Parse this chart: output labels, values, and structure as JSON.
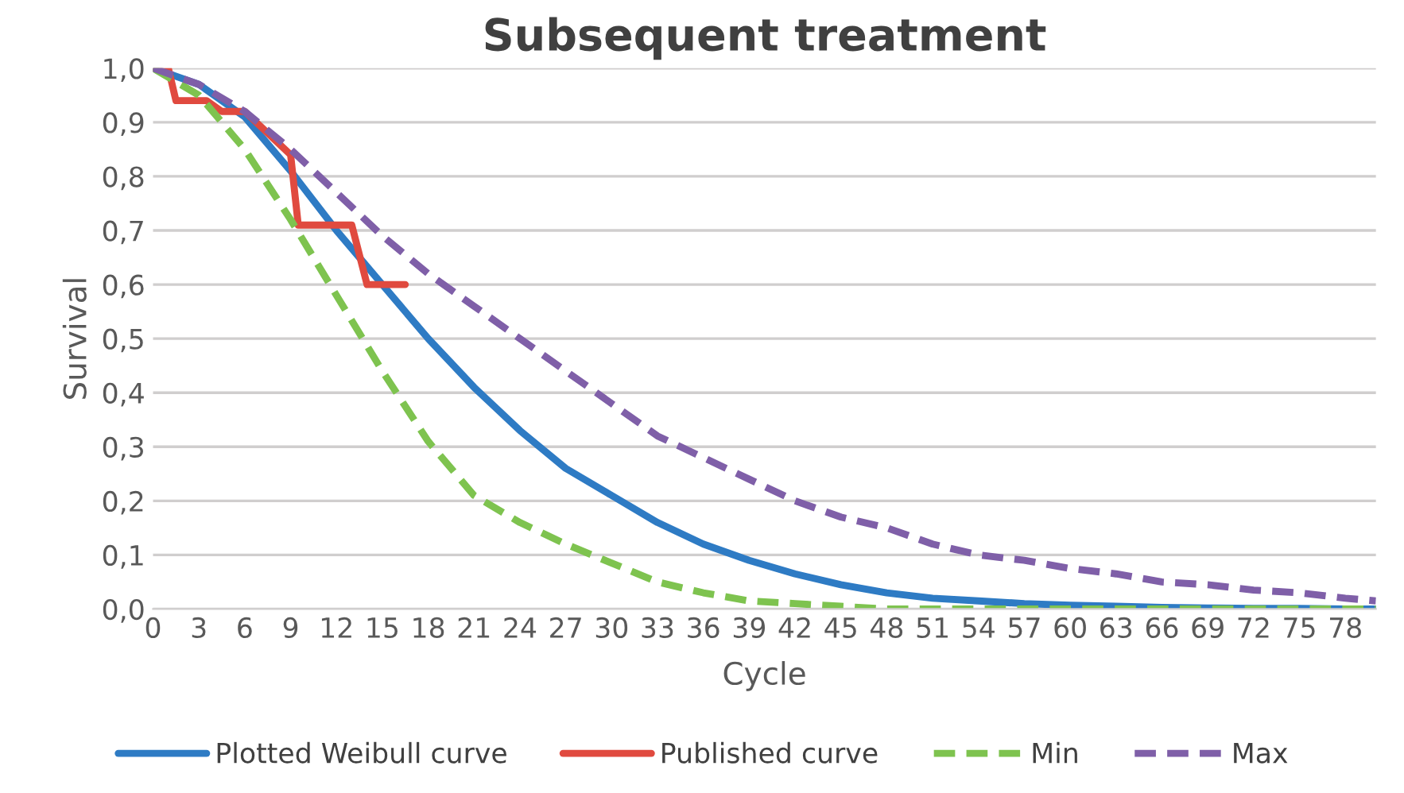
{
  "chart_data": {
    "type": "line",
    "title": "Subsequent treatment",
    "xlabel": "Cycle",
    "ylabel": "Survival",
    "xlim": [
      0,
      80
    ],
    "xticks": [
      0,
      3,
      6,
      9,
      12,
      15,
      18,
      21,
      24,
      27,
      30,
      33,
      36,
      39,
      42,
      45,
      48,
      51,
      54,
      57,
      60,
      63,
      66,
      69,
      72,
      75,
      78
    ],
    "ylim": [
      0,
      1
    ],
    "yticks": [
      {
        "value": 0,
        "label": "0,0"
      },
      {
        "value": 0.1,
        "label": "0,1"
      },
      {
        "value": 0.2,
        "label": "0,2"
      },
      {
        "value": 0.3,
        "label": "0,3"
      },
      {
        "value": 0.4,
        "label": "0,4"
      },
      {
        "value": 0.5,
        "label": "0,5"
      },
      {
        "value": 0.6,
        "label": "0,6"
      },
      {
        "value": 0.7,
        "label": "0,7"
      },
      {
        "value": 0.8,
        "label": "0,8"
      },
      {
        "value": 0.9,
        "label": "0,9"
      },
      {
        "value": 1,
        "label": "1,0"
      }
    ],
    "grid": "y",
    "legend": "bottom",
    "marker": "none",
    "series": [
      {
        "name": "Plotted Weibull curve",
        "color": "#2e7bc4",
        "line_style": "solid",
        "x": [
          0,
          3,
          6,
          9,
          12,
          15,
          18,
          21,
          24,
          27,
          30,
          33,
          36,
          39,
          42,
          45,
          48,
          51,
          54,
          57,
          60,
          63,
          66,
          69,
          72,
          75,
          78,
          80
        ],
        "values": [
          1.0,
          0.97,
          0.91,
          0.81,
          0.7,
          0.6,
          0.5,
          0.41,
          0.33,
          0.26,
          0.21,
          0.16,
          0.12,
          0.09,
          0.065,
          0.045,
          0.03,
          0.02,
          0.015,
          0.01,
          0.007,
          0.005,
          0.003,
          0.002,
          0.001,
          0.001,
          0.0,
          0.0
        ]
      },
      {
        "name": "Published curve",
        "color": "#e04a3f",
        "line_style": "solid",
        "x": [
          0,
          1,
          1.5,
          3.5,
          4.5,
          6,
          9,
          9.5,
          13,
          14,
          16.5
        ],
        "values": [
          1.0,
          1.0,
          0.94,
          0.94,
          0.92,
          0.92,
          0.84,
          0.71,
          0.71,
          0.6,
          0.6
        ]
      },
      {
        "name": "Min",
        "color": "#7ec34f",
        "line_style": "dashed",
        "x": [
          0,
          3,
          6,
          9,
          12,
          15,
          18,
          21,
          24,
          27,
          30,
          33,
          36,
          39,
          42,
          45,
          48,
          51,
          54,
          57,
          60,
          63,
          66,
          69,
          72,
          75,
          78,
          80
        ],
        "values": [
          1.0,
          0.95,
          0.85,
          0.72,
          0.58,
          0.44,
          0.31,
          0.21,
          0.16,
          0.12,
          0.085,
          0.05,
          0.03,
          0.015,
          0.01,
          0.005,
          0.0,
          0.0,
          0.0,
          0.0,
          0.0,
          0.0,
          0.0,
          0.0,
          0.0,
          0.0,
          0.0,
          0.0
        ]
      },
      {
        "name": "Max",
        "color": "#7f5fa8",
        "line_style": "dashed",
        "x": [
          0,
          3,
          6,
          9,
          12,
          15,
          18,
          21,
          24,
          27,
          30,
          33,
          36,
          39,
          42,
          45,
          48,
          51,
          54,
          57,
          60,
          63,
          66,
          69,
          72,
          75,
          78,
          80
        ],
        "values": [
          1.0,
          0.97,
          0.92,
          0.85,
          0.77,
          0.69,
          0.62,
          0.56,
          0.5,
          0.44,
          0.38,
          0.32,
          0.28,
          0.24,
          0.2,
          0.17,
          0.15,
          0.12,
          0.1,
          0.09,
          0.075,
          0.065,
          0.05,
          0.045,
          0.035,
          0.03,
          0.02,
          0.015
        ]
      }
    ]
  }
}
